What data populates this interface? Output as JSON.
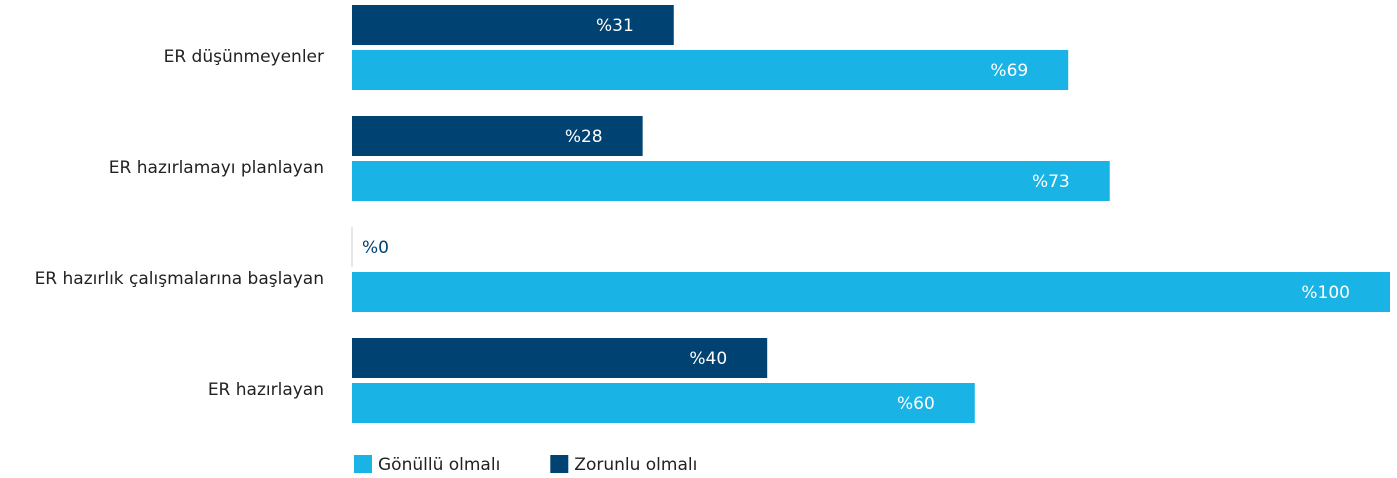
{
  "chart_data": {
    "type": "bar",
    "orientation": "horizontal",
    "categories": [
      "ER düşünmeyenler",
      "ER hazırlamayı planlayan",
      "ER hazırlık çalışmalarına başlayan",
      "ER hazırlayan"
    ],
    "series": [
      {
        "name": "Gönüllü olmalı",
        "color": "#1ab3e6",
        "values": [
          69,
          73,
          100,
          60
        ],
        "value_labels": [
          "%69",
          "%73",
          "%100",
          "%60"
        ]
      },
      {
        "name": "Zorunlu olmalı",
        "color": "#004272",
        "values": [
          31,
          28,
          0,
          40
        ],
        "value_labels": [
          "%31",
          "%28",
          "%0",
          "%40"
        ]
      }
    ],
    "xlim": [
      0,
      100
    ]
  }
}
